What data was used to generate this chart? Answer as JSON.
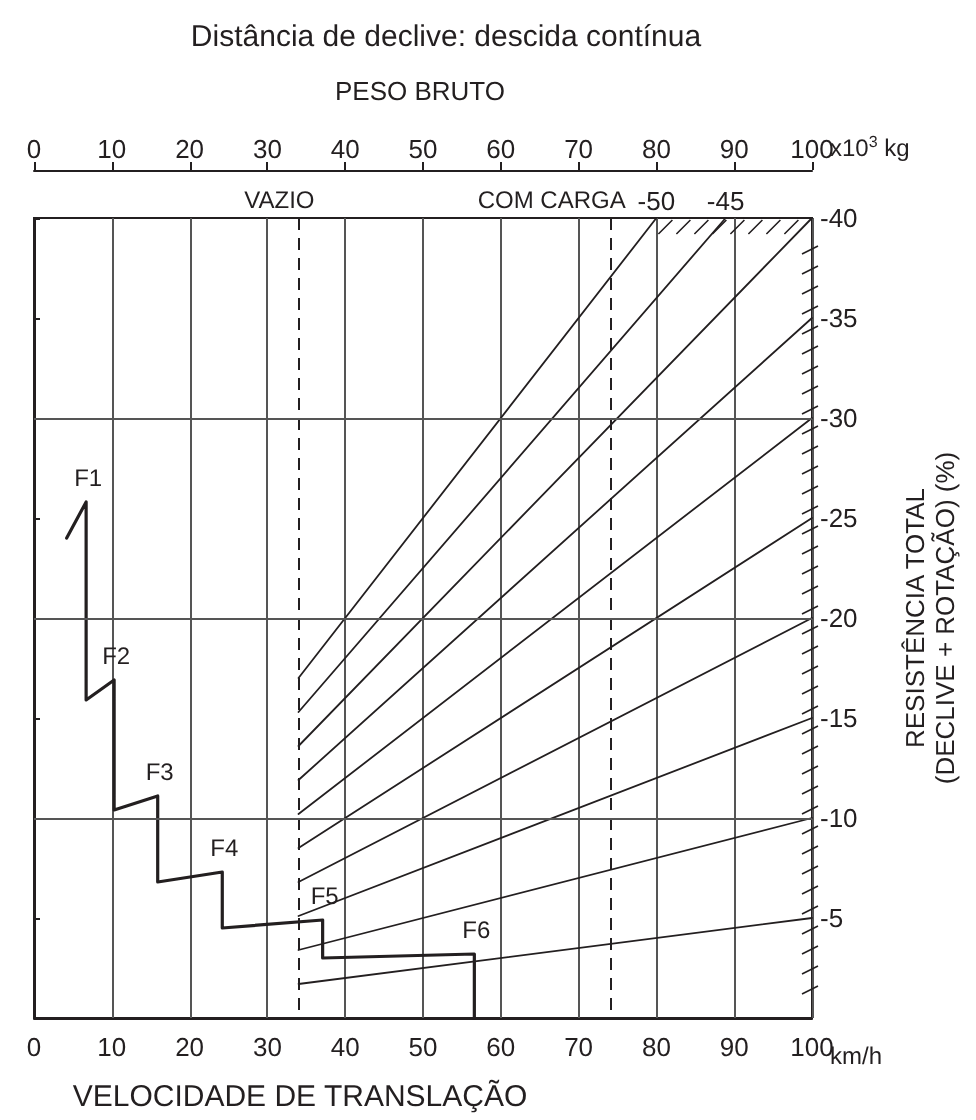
{
  "chart_data": {
    "type": "line",
    "title": "Distância de declive: descida contínua",
    "xlabel": "VELOCIDADE DE TRANSLAÇÃO",
    "x2label": "PESO BRUTO",
    "ylabel": "RESISTÊNCIA TOTAL\n(DECLIVE + ROTAÇÃO) (%)",
    "xlim": [
      0,
      100
    ],
    "xticks": [
      0,
      10,
      20,
      30,
      40,
      50,
      60,
      70,
      80,
      90,
      100
    ],
    "x2lim": [
      0,
      100
    ],
    "x2ticks": [
      0,
      10,
      20,
      30,
      40,
      50,
      60,
      70,
      80,
      90,
      100
    ],
    "ylim": [
      0,
      -40
    ],
    "yticks": [
      -5,
      -10,
      -15,
      -20,
      -25,
      -30,
      -35,
      -40
    ],
    "grid": "x",
    "legend": false,
    "marker": "none",
    "line_style": "solid",
    "series": [
      {
        "color": "#231f20",
        "x": [
          4.2,
          6.7,
          6.7,
          10.3,
          10.3,
          15.9,
          15.9,
          24.2,
          24.2,
          37.1,
          37.1,
          56.6,
          56.6
        ],
        "values": [
          -24.0,
          -25.8,
          -15.9,
          -16.9,
          -10.4,
          -11.1,
          -6.8,
          -7.3,
          -4.5,
          -4.9,
          -3.0,
          -3.2,
          0
        ]
      },
      {
        "color": "#231f20",
        "axis": "x2",
        "x": [
          34,
          100
        ],
        "values": [
          -1.7,
          -5
        ]
      },
      {
        "color": "#231f20",
        "axis": "x2",
        "x": [
          34,
          100
        ],
        "values": [
          -3.4,
          -10
        ]
      },
      {
        "color": "#231f20",
        "axis": "x2",
        "x": [
          34,
          100
        ],
        "values": [
          -5.1,
          -15
        ]
      },
      {
        "color": "#231f20",
        "axis": "x2",
        "x": [
          34,
          100
        ],
        "values": [
          -6.8,
          -20
        ]
      },
      {
        "color": "#231f20",
        "axis": "x2",
        "x": [
          34,
          100
        ],
        "values": [
          -8.5,
          -25
        ]
      },
      {
        "color": "#231f20",
        "axis": "x2",
        "x": [
          34,
          100
        ],
        "values": [
          -10.2,
          -30
        ]
      },
      {
        "color": "#231f20",
        "axis": "x2",
        "x": [
          34,
          100
        ],
        "values": [
          -11.9,
          -35
        ]
      },
      {
        "color": "#231f20",
        "axis": "x2",
        "x": [
          34,
          100
        ],
        "values": [
          -13.6,
          -40
        ]
      },
      {
        "name": "-45",
        "color": "#231f20",
        "axis": "x2",
        "x": [
          34,
          88.9
        ],
        "values": [
          -15.3,
          -40
        ]
      },
      {
        "name": "-50",
        "color": "#231f20",
        "axis": "x2",
        "x": [
          34,
          80
        ],
        "values": [
          -17,
          -40
        ]
      }
    ],
    "ref_lines": [
      {
        "axis": "x2",
        "value": 34,
        "label": "VAZIO",
        "line_style": "dashed",
        "color": "#231f20"
      },
      {
        "axis": "x2",
        "value": 74,
        "label": "COM CARGA",
        "line_style": "dashed",
        "color": "#231f20"
      },
      {
        "axis": "y",
        "value": -10,
        "color": "#555555"
      },
      {
        "axis": "y",
        "value": -20,
        "color": "#555555"
      },
      {
        "axis": "y",
        "value": -30,
        "color": "#555555"
      }
    ],
    "annotations": [
      "x10$^{3}$ kg",
      "km/h",
      {
        "text": "F1",
        "x": 6.7,
        "y": -25.8
      },
      {
        "text": "F2",
        "x": 10.3,
        "y": -16.9
      },
      {
        "text": "F3",
        "x": 15.9,
        "y": -11.1
      },
      {
        "text": "F4",
        "x": 24.2,
        "y": -7.3
      },
      {
        "text": "F5",
        "x": 37.1,
        "y": -4.9
      },
      {
        "text": "F6",
        "x": 56.6,
        "y": -3.2
      }
    ]
  }
}
